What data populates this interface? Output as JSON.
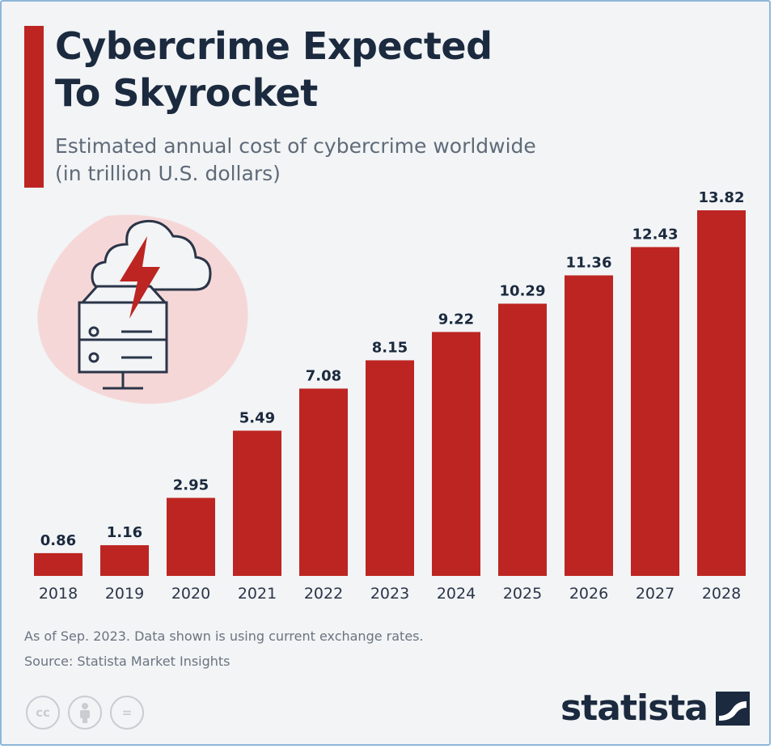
{
  "header": {
    "title_line1": "Cybercrime Expected",
    "title_line2": "To Skyrocket",
    "subtitle_line1": "Estimated annual cost of cybercrime worldwide",
    "subtitle_line2": "(in trillion U.S. dollars)"
  },
  "colors": {
    "bar": "#bd2522",
    "title": "#1b2a3e",
    "accent": "#bd2522"
  },
  "chart_data": {
    "type": "bar",
    "title": "Cybercrime Expected To Skyrocket",
    "subtitle": "Estimated annual cost of cybercrime worldwide (in trillion U.S. dollars)",
    "categories": [
      "2018",
      "2019",
      "2020",
      "2021",
      "2022",
      "2023",
      "2024",
      "2025",
      "2026",
      "2027",
      "2028"
    ],
    "values": [
      0.86,
      1.16,
      2.95,
      5.49,
      7.08,
      8.15,
      9.22,
      10.29,
      11.36,
      12.43,
      13.82
    ],
    "value_labels": [
      "0.86",
      "1.16",
      "2.95",
      "5.49",
      "7.08",
      "8.15",
      "9.22",
      "10.29",
      "11.36",
      "12.43",
      "13.82"
    ],
    "xlabel": "",
    "ylabel": "",
    "ylim": [
      0,
      13.82
    ],
    "grid": false,
    "legend": "none"
  },
  "icons": {
    "illustration": "cloud-server-lightning-icon",
    "license": [
      "creative-commons-icon",
      "attribution-icon",
      "no-derivatives-icon"
    ],
    "brand": "statista-logo-icon"
  },
  "footer": {
    "note": "As of Sep. 2023. Data shown is using current exchange rates.",
    "source": "Source: Statista Market Insights",
    "license_cc": "cc",
    "license_nd": "=",
    "brand": "statista"
  }
}
